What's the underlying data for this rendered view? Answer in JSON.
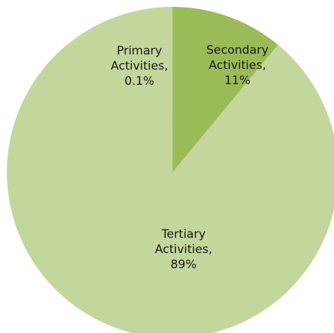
{
  "chart_data": {
    "type": "pie",
    "title": "",
    "legend": "none",
    "slices": [
      {
        "label_lines": [
          "Primary",
          "Activities,",
          "0.1%"
        ],
        "value": 0.1,
        "color": "#c3d69b"
      },
      {
        "label_lines": [
          "Secondary",
          "Activities,",
          "11%"
        ],
        "value": 11,
        "color": "#9bbb59"
      },
      {
        "label_lines": [
          "Tertiary",
          "Activities,",
          "89%"
        ],
        "value": 89,
        "color": "#c3d69b"
      }
    ]
  }
}
